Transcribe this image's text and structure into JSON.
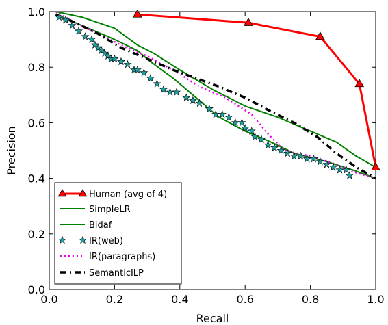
{
  "chart_data": {
    "type": "line",
    "title": "",
    "xlabel": "Recall",
    "ylabel": "Precision",
    "xlim": [
      0.0,
      1.0
    ],
    "ylim": [
      0.0,
      1.0
    ],
    "xticks": [
      "0.0",
      "0.2",
      "0.4",
      "0.6",
      "0.8",
      "1.0"
    ],
    "yticks": [
      "0.0",
      "0.2",
      "0.4",
      "0.6",
      "0.8",
      "1.0"
    ],
    "grid": false,
    "legend_position": "lower-left",
    "series": [
      {
        "name": "Human (avg of 4)",
        "color": "#ff0000",
        "style": "solid-triangle-markers",
        "x": [
          0.27,
          0.61,
          0.83,
          0.95,
          1.0
        ],
        "y": [
          0.99,
          0.96,
          0.91,
          0.74,
          0.44
        ]
      },
      {
        "name": "SimpleLR",
        "color": "#008000",
        "style": "solid",
        "x": [
          0.02,
          0.1,
          0.2,
          0.27,
          0.32,
          0.4,
          0.5,
          0.6,
          0.7,
          0.8,
          0.88,
          0.94,
          1.0
        ],
        "y": [
          1.0,
          0.98,
          0.94,
          0.88,
          0.85,
          0.79,
          0.72,
          0.66,
          0.62,
          0.57,
          0.53,
          0.48,
          0.44
        ]
      },
      {
        "name": "Bidaf",
        "color": "#008000",
        "style": "solid",
        "x": [
          0.02,
          0.1,
          0.2,
          0.27,
          0.31,
          0.38,
          0.45,
          0.52,
          0.6,
          0.68,
          0.75,
          0.85,
          0.93,
          1.0
        ],
        "y": [
          0.99,
          0.95,
          0.9,
          0.86,
          0.82,
          0.76,
          0.69,
          0.62,
          0.57,
          0.53,
          0.49,
          0.46,
          0.43,
          0.4
        ]
      },
      {
        "name": "IR(web)",
        "color": "#20a0a0",
        "style": "star-markers",
        "x": [
          0.03,
          0.05,
          0.07,
          0.09,
          0.11,
          0.13,
          0.14,
          0.15,
          0.16,
          0.17,
          0.18,
          0.19,
          0.2,
          0.22,
          0.24,
          0.26,
          0.27,
          0.29,
          0.31,
          0.33,
          0.35,
          0.37,
          0.39,
          0.42,
          0.44,
          0.46,
          0.49,
          0.51,
          0.53,
          0.55,
          0.57,
          0.59,
          0.6,
          0.62,
          0.63,
          0.65,
          0.67,
          0.69,
          0.71,
          0.73,
          0.75,
          0.77,
          0.79,
          0.81,
          0.83,
          0.85,
          0.87,
          0.89,
          0.91,
          0.92
        ],
        "y": [
          0.98,
          0.97,
          0.95,
          0.93,
          0.91,
          0.9,
          0.88,
          0.87,
          0.86,
          0.85,
          0.84,
          0.83,
          0.83,
          0.82,
          0.81,
          0.79,
          0.79,
          0.78,
          0.76,
          0.74,
          0.72,
          0.71,
          0.71,
          0.69,
          0.68,
          0.67,
          0.65,
          0.63,
          0.63,
          0.62,
          0.6,
          0.6,
          0.58,
          0.57,
          0.55,
          0.54,
          0.52,
          0.51,
          0.5,
          0.49,
          0.48,
          0.48,
          0.47,
          0.47,
          0.46,
          0.45,
          0.44,
          0.43,
          0.43,
          0.41
        ]
      },
      {
        "name": "IR(paragraphs)",
        "color": "#ee00ee",
        "style": "dotted",
        "x": [
          0.02,
          0.08,
          0.15,
          0.22,
          0.3,
          0.38,
          0.46,
          0.54,
          0.62,
          0.67,
          0.72,
          0.8,
          0.88,
          0.94,
          1.0
        ],
        "y": [
          1.0,
          0.96,
          0.92,
          0.88,
          0.84,
          0.79,
          0.73,
          0.69,
          0.63,
          0.56,
          0.5,
          0.48,
          0.45,
          0.42,
          0.4
        ]
      },
      {
        "name": "SemanticILP",
        "color": "#000000",
        "style": "dashdot",
        "x": [
          0.02,
          0.08,
          0.15,
          0.22,
          0.3,
          0.38,
          0.45,
          0.52,
          0.6,
          0.68,
          0.75,
          0.82,
          0.88,
          0.94,
          1.0
        ],
        "y": [
          0.99,
          0.96,
          0.92,
          0.87,
          0.83,
          0.79,
          0.76,
          0.73,
          0.69,
          0.64,
          0.6,
          0.55,
          0.49,
          0.44,
          0.4
        ]
      }
    ]
  }
}
